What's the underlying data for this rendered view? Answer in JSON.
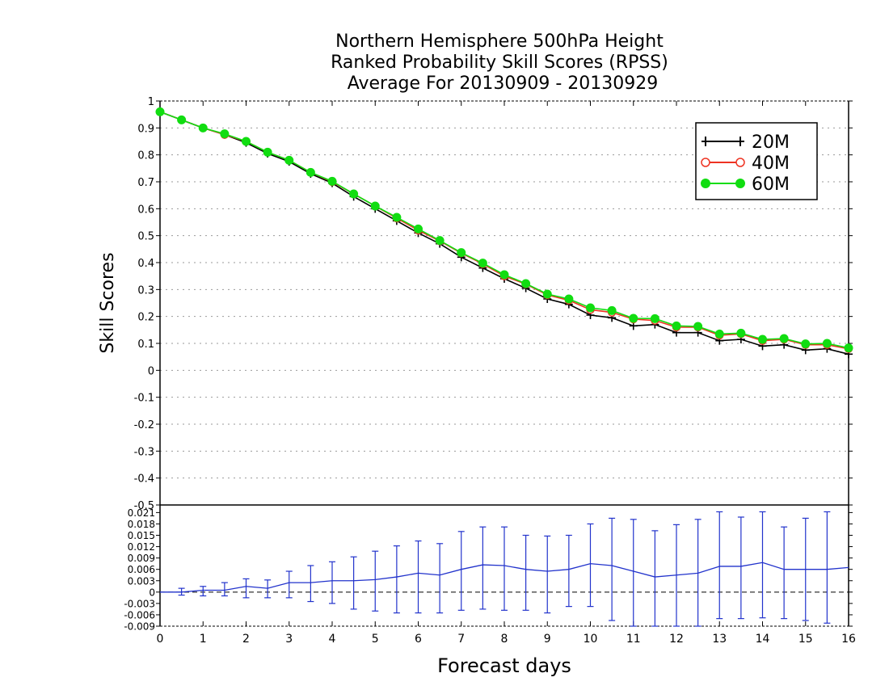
{
  "chart_data": [
    {
      "type": "line",
      "title": [
        "Northern Hemisphere 500hPa Height",
        "Ranked Probability Skill Scores (RPSS)",
        "Average For 20130909 - 20130929"
      ],
      "ylabel": "Skill Scores",
      "ylim": [
        -0.5,
        1.0
      ],
      "yticks": [
        "1",
        "0.9",
        "0.8",
        "0.7",
        "0.6",
        "0.5",
        "0.4",
        "0.3",
        "0.2",
        "0.1",
        "0",
        "-0.1",
        "-0.2",
        "-0.3",
        "-0.4",
        "-0.5"
      ],
      "grid": "dotted horizontal",
      "legend_position": "top-right",
      "x": [
        0,
        0.5,
        1,
        1.5,
        2,
        2.5,
        3,
        3.5,
        4,
        4.5,
        5,
        5.5,
        6,
        6.5,
        7,
        7.5,
        8,
        8.5,
        9,
        9.5,
        10,
        10.5,
        11,
        11.5,
        12,
        12.5,
        13,
        13.5,
        14,
        14.5,
        15,
        15.5,
        16
      ],
      "series": [
        {
          "name": "20M",
          "color": "#000000",
          "marker": "plus",
          "values": [
            0.96,
            0.93,
            0.9,
            0.875,
            0.845,
            0.805,
            0.775,
            0.73,
            0.695,
            0.645,
            0.6,
            0.555,
            0.51,
            0.47,
            0.42,
            0.38,
            0.34,
            0.305,
            0.265,
            0.245,
            0.205,
            0.195,
            0.165,
            0.17,
            0.14,
            0.14,
            0.11,
            0.115,
            0.09,
            0.095,
            0.075,
            0.08,
            0.06
          ]
        },
        {
          "name": "40M",
          "color": "#ee3322",
          "marker": "circle-open",
          "values": [
            0.96,
            0.93,
            0.9,
            0.875,
            0.85,
            0.81,
            0.78,
            0.735,
            0.7,
            0.655,
            0.61,
            0.565,
            0.52,
            0.48,
            0.435,
            0.395,
            0.35,
            0.32,
            0.28,
            0.26,
            0.225,
            0.215,
            0.19,
            0.185,
            0.16,
            0.16,
            0.13,
            0.135,
            0.11,
            0.115,
            0.095,
            0.095,
            0.08
          ]
        },
        {
          "name": "60M",
          "color": "#11dd11",
          "marker": "circle-filled",
          "values": [
            0.96,
            0.93,
            0.9,
            0.878,
            0.85,
            0.81,
            0.78,
            0.735,
            0.702,
            0.655,
            0.61,
            0.568,
            0.525,
            0.482,
            0.437,
            0.398,
            0.355,
            0.322,
            0.283,
            0.265,
            0.232,
            0.222,
            0.193,
            0.192,
            0.165,
            0.163,
            0.135,
            0.138,
            0.115,
            0.118,
            0.098,
            0.1,
            0.083
          ]
        }
      ],
      "legend": [
        {
          "label": "20M",
          "color": "#000000",
          "marker": "plus"
        },
        {
          "label": "40M",
          "color": "#ee3322",
          "marker": "circle-open"
        },
        {
          "label": "60M",
          "color": "#11dd11",
          "marker": "circle-filled"
        }
      ]
    },
    {
      "type": "line",
      "subtype": "errorbar",
      "xlabel": "Forecast days",
      "xlim": [
        0,
        16
      ],
      "xticks": [
        "0",
        "1",
        "2",
        "3",
        "4",
        "5",
        "6",
        "7",
        "8",
        "9",
        "10",
        "11",
        "12",
        "13",
        "14",
        "15",
        "16"
      ],
      "ylim": [
        -0.009,
        0.023
      ],
      "yticks": [
        "0.021",
        "0.018",
        "0.015",
        "0.012",
        "0.009",
        "0.006",
        "0.003",
        "0",
        "-0.003",
        "-0.006",
        "-0.009"
      ],
      "zero_line": "dashed",
      "color": "#2233cc",
      "x": [
        0,
        0.5,
        1,
        1.5,
        2,
        2.5,
        3,
        3.5,
        4,
        4.5,
        5,
        5.5,
        6,
        6.5,
        7,
        7.5,
        8,
        8.5,
        9,
        9.5,
        10,
        10.5,
        11,
        11.5,
        12,
        12.5,
        13,
        13.5,
        14,
        14.5,
        15,
        15.5,
        16
      ],
      "values": [
        0,
        0,
        0.0005,
        0.0005,
        0.0015,
        0.001,
        0.0025,
        0.0025,
        0.003,
        0.003,
        0.0033,
        0.004,
        0.005,
        0.0045,
        0.006,
        0.0072,
        0.007,
        0.006,
        0.0055,
        0.006,
        0.0075,
        0.007,
        0.0055,
        0.004,
        0.0045,
        0.005,
        0.0068,
        0.0068,
        0.0078,
        0.006,
        0.006,
        0.006,
        0.0065
      ],
      "error_low": [
        null,
        -0.0008,
        -0.001,
        -0.001,
        -0.0015,
        -0.0015,
        -0.0015,
        -0.0025,
        -0.003,
        -0.0045,
        -0.005,
        -0.0055,
        -0.0055,
        -0.0055,
        -0.0048,
        -0.0045,
        -0.0048,
        -0.0048,
        -0.0055,
        -0.0038,
        -0.0038,
        -0.0075,
        -0.0092,
        -0.009,
        -0.009,
        -0.0092,
        -0.007,
        -0.007,
        -0.0068,
        -0.007,
        -0.0075,
        -0.0082,
        null
      ],
      "error_high": [
        null,
        0.001,
        0.0015,
        0.0025,
        0.0035,
        0.0032,
        0.0055,
        0.007,
        0.008,
        0.0093,
        0.0108,
        0.0122,
        0.0135,
        0.0128,
        0.016,
        0.0172,
        0.0172,
        0.015,
        0.0148,
        0.015,
        0.018,
        0.0195,
        0.0192,
        0.0162,
        0.0178,
        0.0192,
        0.0212,
        0.0198,
        0.0212,
        0.0172,
        0.0195,
        0.0212,
        null
      ]
    }
  ]
}
